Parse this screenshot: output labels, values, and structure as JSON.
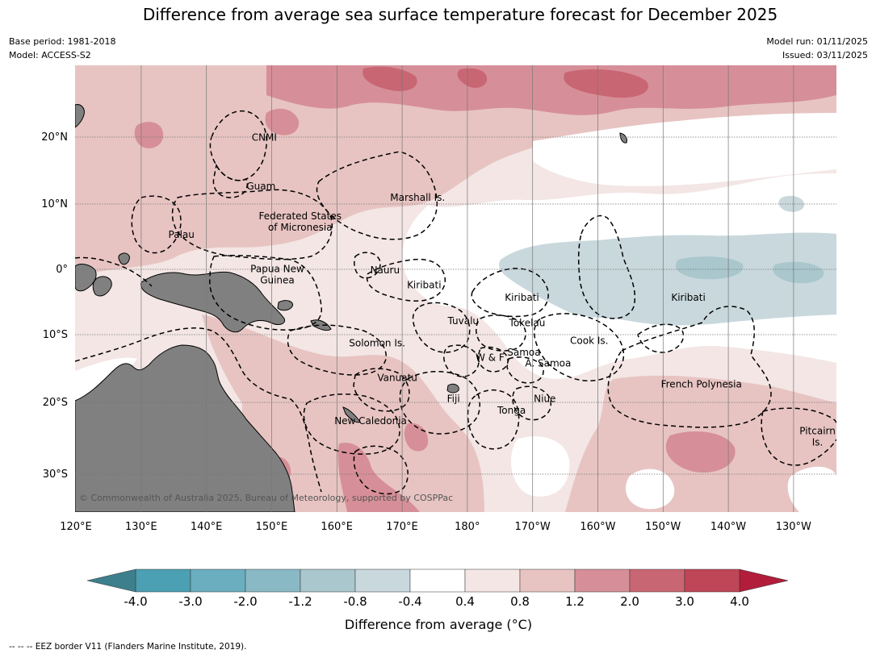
{
  "title": "Difference from average sea surface temperature forecast for December 2025",
  "meta": {
    "base_period": "Base period: 1981-2018",
    "model": "Model: ACCESS-S2",
    "model_run": "Model run: 01/11/2025",
    "issued": "Issued: 03/11/2025"
  },
  "map": {
    "lon_labels": [
      "120°E",
      "130°E",
      "140°E",
      "150°E",
      "160°E",
      "170°E",
      "180°",
      "170°W",
      "160°W",
      "150°W",
      "140°W",
      "130°W"
    ],
    "lat_labels": [
      "20°N",
      "10°N",
      "0°",
      "10°S",
      "20°S",
      "30°S"
    ],
    "places": [
      {
        "lines": [
          "CNMI"
        ],
        "lon": 147.5,
        "lat": 20.2
      },
      {
        "lines": [
          "Guam"
        ],
        "lon": 147.0,
        "lat": 12.7
      },
      {
        "lines": [
          "Marshall Is."
        ],
        "lon": 171.0,
        "lat": 11.0
      },
      {
        "lines": [
          "Federated States",
          "of Micronesia"
        ],
        "lon": 153.0,
        "lat": 7.3
      },
      {
        "lines": [
          "Palau"
        ],
        "lon": 134.8,
        "lat": 5.3
      },
      {
        "lines": [
          "Nauru"
        ],
        "lon": 166.0,
        "lat": -0.1
      },
      {
        "lines": [
          "Papua New",
          "Guinea"
        ],
        "lon": 149.5,
        "lat": -0.8
      },
      {
        "lines": [
          "Kiribati"
        ],
        "lon": 172.0,
        "lat": -2.4
      },
      {
        "lines": [
          "Kiribati"
        ],
        "lon": -173.0,
        "lat": -4.3
      },
      {
        "lines": [
          "Kiribati"
        ],
        "lon": -147.5,
        "lat": -4.3
      },
      {
        "lines": [
          "Tuvalu"
        ],
        "lon": 178.0,
        "lat": -7.9
      },
      {
        "lines": [
          "Tokelau"
        ],
        "lon": -172.2,
        "lat": -8.2
      },
      {
        "lines": [
          "Cook Is."
        ],
        "lon": -162.7,
        "lat": -10.9
      },
      {
        "lines": [
          "Solomon Is."
        ],
        "lon": 164.8,
        "lat": -11.3
      },
      {
        "lines": [
          "Samoa"
        ],
        "lon": -172.7,
        "lat": -12.7
      },
      {
        "lines": [
          "W & F"
        ],
        "lon": -177.9,
        "lat": -13.5
      },
      {
        "lines": [
          "A. Samoa"
        ],
        "lon": -169.0,
        "lat": -14.4
      },
      {
        "lines": [
          "Vanuatu"
        ],
        "lon": 167.9,
        "lat": -16.7
      },
      {
        "lines": [
          "French Polynesia"
        ],
        "lon": -145.5,
        "lat": -17.7
      },
      {
        "lines": [
          "Fiji"
        ],
        "lon": 176.5,
        "lat": -20.0
      },
      {
        "lines": [
          "Niue"
        ],
        "lon": -169.5,
        "lat": -20.0
      },
      {
        "lines": [
          "Tonga"
        ],
        "lon": -174.6,
        "lat": -21.9
      },
      {
        "lines": [
          "New Caledonia"
        ],
        "lon": 163.8,
        "lat": -23.6
      },
      {
        "lines": [
          "Pitcairn",
          "Is."
        ],
        "lon": -127.7,
        "lat": -26.1
      }
    ],
    "copyright": "© Commonwealth of Australia 2025, Bureau of Meteorology, supported by COSPPac"
  },
  "colorbar": {
    "title": "Difference from average (°C)",
    "tick_labels": [
      "-4.0",
      "-3.0",
      "-2.0",
      "-1.2",
      "-0.8",
      "-0.4",
      "0.4",
      "0.8",
      "1.2",
      "2.0",
      "3.0",
      "4.0"
    ],
    "colors": [
      "#3d7f8c",
      "#4ba0b3",
      "#6baebf",
      "#89b9c5",
      "#a9c7cd",
      "#c9d8dd",
      "#ffffff",
      "#f3e6e5",
      "#e7c4c2",
      "#d68f98",
      "#c96673",
      "#bf4656",
      "#b21d3b"
    ],
    "land_color": "#808080"
  },
  "footnote": "--  --  -- EEZ border V11 (Flanders Marine Institute, 2019)."
}
